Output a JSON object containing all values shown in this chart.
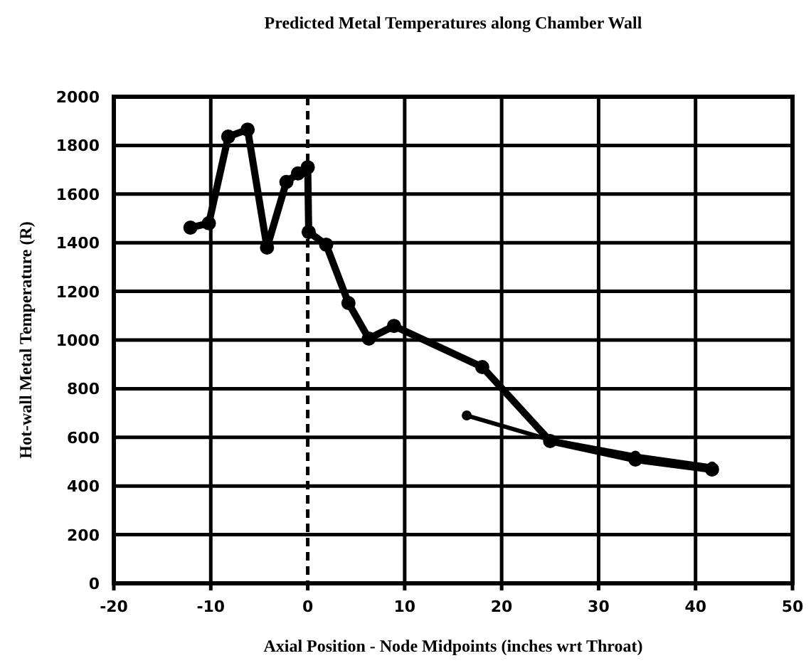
{
  "chart_data": {
    "type": "line",
    "title": "Predicted Metal Temperatures along Chamber Wall",
    "xlabel": "Axial Position - Node Midpoints (inches wrt Throat)",
    "ylabel": "Hot-wall Metal Temperature (R)",
    "xlim": [
      -20,
      50
    ],
    "xticks": [
      -20,
      -10,
      0,
      10,
      20,
      30,
      40,
      50
    ],
    "ylim": [
      0,
      2000
    ],
    "yticks": [
      0,
      200,
      400,
      600,
      800,
      1000,
      1200,
      1400,
      1600,
      1800,
      2000
    ],
    "grid": true,
    "marker": "circle",
    "line_style": "solid",
    "ref_lines": [
      {
        "axis": "x",
        "value": 0,
        "line_style": "dashed",
        "color": "#000000"
      }
    ],
    "series": [
      {
        "color": "#000000",
        "x": [
          -12.1,
          -10.2,
          -8.2,
          -6.2,
          -4.2,
          -2.2,
          -1,
          0,
          0.1,
          1.9,
          4.2,
          6.3,
          8.9,
          18,
          25,
          33.8,
          41.7
        ],
        "values": [
          1462,
          1480,
          1836,
          1865,
          1380,
          1650,
          1685,
          1710,
          1444,
          1392,
          1152,
          1006,
          1058,
          889,
          585,
          509,
          468
        ]
      },
      {
        "color": "#000000",
        "x": [
          16.4,
          25,
          33.8,
          41.7
        ],
        "values": [
          690,
          590,
          525,
          480
        ]
      }
    ]
  }
}
